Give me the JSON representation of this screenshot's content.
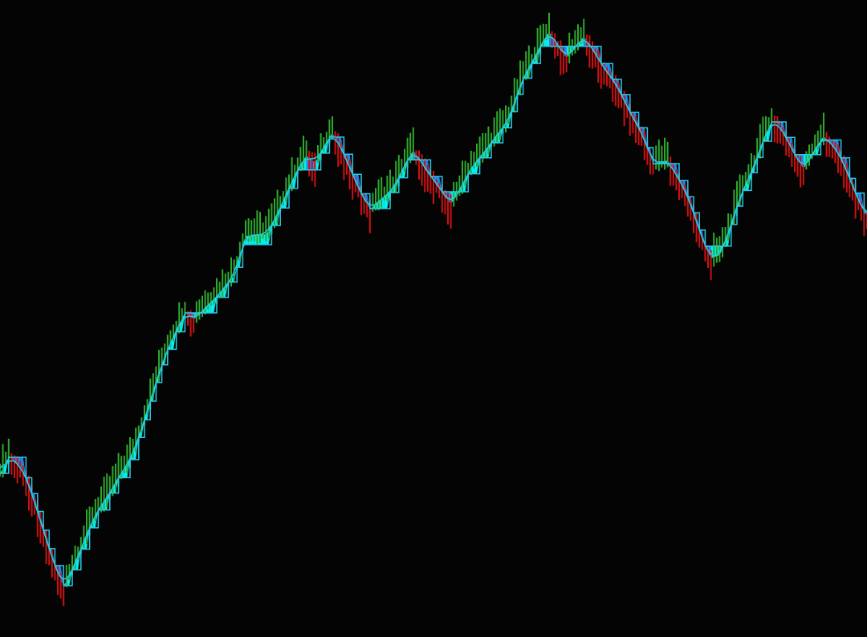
{
  "chart_data": {
    "type": "bar",
    "subtype": "price-bars-with-trend-lines",
    "title": "",
    "xlabel": "",
    "ylabel": "",
    "xlim": [
      0,
      300
    ],
    "ylim": [
      3,
      400
    ],
    "grid": false,
    "legend": "none",
    "background_color": "#040404",
    "colors": {
      "up_bar": "#2ea82e",
      "down_bar": "#d01010",
      "smooth_line": "#29c9e6",
      "step_line_up": "#00ffff",
      "step_line_down": "#1e90ff"
    },
    "pivots": [
      [
        0,
        105
      ],
      [
        3,
        115
      ],
      [
        7,
        110
      ],
      [
        22,
        35
      ],
      [
        35,
        85
      ],
      [
        44,
        110
      ],
      [
        60,
        190
      ],
      [
        64,
        205
      ],
      [
        67,
        201
      ],
      [
        74,
        213
      ],
      [
        81,
        228
      ],
      [
        85,
        253
      ],
      [
        92,
        254
      ],
      [
        106,
        303
      ],
      [
        109,
        299
      ],
      [
        115,
        317
      ],
      [
        128,
        270
      ],
      [
        135,
        280
      ],
      [
        143,
        306
      ],
      [
        150,
        288
      ],
      [
        156,
        273
      ],
      [
        165,
        300
      ],
      [
        175,
        322
      ],
      [
        182,
        355
      ],
      [
        190,
        380
      ],
      [
        196,
        364
      ],
      [
        202,
        377
      ],
      [
        211,
        353
      ],
      [
        222,
        318
      ],
      [
        226,
        298
      ],
      [
        231,
        300
      ],
      [
        236,
        285
      ],
      [
        246,
        239
      ],
      [
        249,
        241
      ],
      [
        258,
        285
      ],
      [
        267,
        324
      ],
      [
        269,
        323
      ],
      [
        278,
        295
      ],
      [
        285,
        315
      ],
      [
        289,
        308
      ],
      [
        300,
        265
      ]
    ]
  }
}
